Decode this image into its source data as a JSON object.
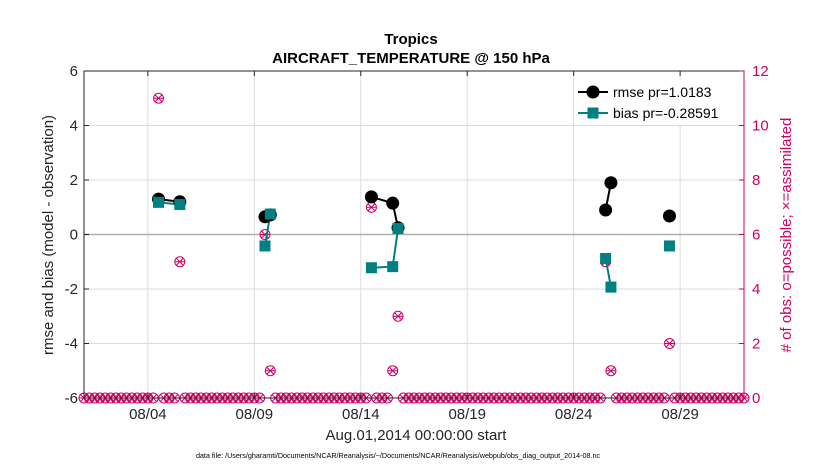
{
  "chart_data": {
    "type": "line",
    "title": "Tropics",
    "subtitle": "AIRCRAFT_TEMPERATURE @ 150 hPa",
    "xlabel": "Aug.01,2014 00:00:00 start",
    "ylabel": "rmse and bias (model - observation)",
    "ylabel_right": "# of obs: o=possible; ×=assimilated",
    "footnote": "data file: /Users/gharamti/Documents/NCAR/Reanalysis/~/Documents/NCAR/Reanalysis/webpub/obs_diag_output_2014-08.nc",
    "x_unit": "days since Aug.01,2014",
    "xlim": [
      0,
      31
    ],
    "ylim": [
      -6,
      6
    ],
    "ylim_right": [
      0,
      12
    ],
    "x_ticks": [
      3,
      8,
      13,
      18,
      23,
      28
    ],
    "x_tick_labels": [
      "08/04",
      "08/09",
      "08/14",
      "08/19",
      "08/24",
      "08/29"
    ],
    "y_ticks": [
      -6,
      -4,
      -2,
      0,
      2,
      4,
      6
    ],
    "y_tick_labels": [
      "-6",
      "-4",
      "-2",
      "0",
      "2",
      "4",
      "6"
    ],
    "y_ticks_right": [
      0,
      2,
      4,
      6,
      8,
      10,
      12
    ],
    "y_tick_labels_right": [
      "0",
      "2",
      "4",
      "6",
      "8",
      "10",
      "12"
    ],
    "grid": true,
    "legend_position": "top-right",
    "series": [
      {
        "name": "rmse pr=1.0183",
        "color": "#000000",
        "marker": "circle",
        "axis": "left",
        "x": [
          3.5,
          4.5,
          null,
          8.5,
          8.75,
          null,
          13.5,
          14.5,
          14.75,
          null,
          24.5,
          24.75,
          null,
          27.5
        ],
        "values": [
          1.3,
          1.2,
          null,
          0.65,
          0.72,
          null,
          1.38,
          1.15,
          0.25,
          null,
          0.9,
          1.9,
          null,
          0.68
        ]
      },
      {
        "name": "bias pr=-0.28591",
        "color": "#008080",
        "marker": "square",
        "axis": "left",
        "x": [
          3.5,
          4.5,
          null,
          8.5,
          8.75,
          null,
          13.5,
          14.5,
          14.75,
          null,
          24.5,
          24.75,
          null,
          27.5
        ],
        "values": [
          1.18,
          1.1,
          null,
          -0.42,
          0.75,
          null,
          -1.22,
          -1.18,
          0.22,
          null,
          -0.88,
          -1.93,
          null,
          -0.42
        ]
      },
      {
        "name": "obs possible",
        "color": "#cc0066",
        "marker": "circle-open",
        "axis": "right",
        "x": [
          3.5,
          4.5,
          8.5,
          8.75,
          13.5,
          14.5,
          14.75,
          24.5,
          24.75,
          27.5
        ],
        "values": [
          11,
          5,
          6,
          1,
          7,
          1,
          3,
          5,
          1,
          2
        ]
      },
      {
        "name": "obs assimilated",
        "color": "#cc0066",
        "marker": "x",
        "axis": "right",
        "x": [
          3.5,
          4.5,
          8.5,
          8.75,
          13.5,
          14.5,
          14.75,
          24.5,
          24.75,
          27.5
        ],
        "values": [
          11,
          5,
          6,
          1,
          7,
          1,
          3,
          5,
          1,
          2
        ]
      }
    ],
    "zero_count_step": 0.25,
    "colors": {
      "axis": "#262626",
      "right_axis": "#cc0066",
      "grid": "#dcdcdc",
      "zero_line": "#b0b0b0"
    }
  }
}
